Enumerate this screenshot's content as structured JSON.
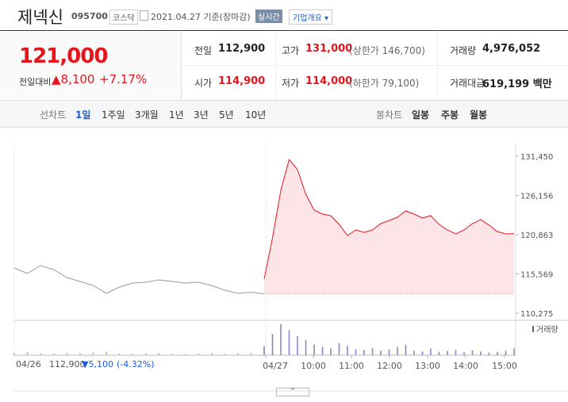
{
  "header": {
    "name": "제넥신",
    "code": "095700",
    "market": "코스닥",
    "date": "2021.04.27 기준(장마감)",
    "realtime": "실시간",
    "overview": "기업개요"
  },
  "price": {
    "now": "121,000",
    "diff_label": "전일대비",
    "diff": "▲8,100",
    "rate": "+7.17%"
  },
  "info": {
    "rows": [
      [
        {
          "label": "전일",
          "value": "112,900"
        },
        {
          "label": "고가",
          "value": "131,000",
          "note": "(상한가 146,700)"
        },
        {
          "label": "거래량",
          "value": "4,976,052"
        }
      ],
      [
        {
          "label": "시가",
          "value": "114,900"
        },
        {
          "label": "저가",
          "value": "114,000",
          "note": "(하한가 79,100)"
        },
        {
          "label": "거래대금",
          "value": "619,199 백만"
        }
      ]
    ]
  },
  "tabs": {
    "line_label": "선차트",
    "line": [
      "1일",
      "1주일",
      "3개월",
      "1년",
      "3년",
      "5년",
      "10년"
    ],
    "candle_label": "봉차트",
    "candle": [
      "일봉",
      "주봉",
      "월봉"
    ]
  },
  "chart": {
    "type": "line",
    "ylim": [
      110275,
      131450
    ],
    "yticks": [
      {
        "value": 131450,
        "label": "131,450"
      },
      {
        "value": 126156,
        "label": "126,156"
      },
      {
        "value": 120863,
        "label": "120,863"
      },
      {
        "value": 115569,
        "label": "115,569"
      },
      {
        "value": 110275,
        "label": "110,275"
      }
    ],
    "prev_close": 112900,
    "series": [
      {
        "color": "#9a9a9a",
        "values": [
          116370,
          115620,
          116690,
          116160,
          115090,
          114550,
          114020,
          112950,
          113800,
          114340,
          114450,
          114770,
          114550,
          114340,
          114450,
          114020,
          113380,
          112950,
          113100,
          112900
        ]
      },
      {
        "color": "#e8141c",
        "fill": "#fde4e6",
        "values": [
          114900,
          120440,
          126850,
          131000,
          129630,
          126320,
          124180,
          123640,
          123430,
          122250,
          120760,
          121500,
          121180,
          121500,
          122360,
          122790,
          123220,
          124070,
          123640,
          123110,
          123430,
          122250,
          121500,
          120970,
          121500,
          122360,
          122900,
          122150,
          121290,
          120970,
          121000
        ]
      }
    ],
    "xlabels": [
      "04/27",
      "10:00",
      "11:00",
      "12:00",
      "13:00",
      "14:00",
      "15:00"
    ],
    "volume_label": "거래량",
    "vlim": [
      0,
      450000
    ],
    "volume": [
      [
        30000,
        45000,
        25000,
        20000,
        35000,
        28000,
        40000,
        50000,
        22000,
        18000,
        25000,
        30000,
        20000,
        15000,
        22000,
        28000,
        18000,
        25000,
        35000,
        60000
      ],
      [
        120000,
        280000,
        410000,
        330000,
        250000,
        200000,
        140000,
        110000,
        90000,
        160000,
        120000,
        80000,
        70000,
        95000,
        60000,
        75000,
        110000,
        140000,
        60000,
        50000,
        90000,
        45000,
        55000,
        70000,
        40000,
        65000,
        50000,
        35000,
        45000,
        60000,
        90000
      ]
    ]
  },
  "footer": {
    "date": "04/26",
    "close": "112,900",
    "change": "▼5,100",
    "rate": "(-4.32%)"
  }
}
